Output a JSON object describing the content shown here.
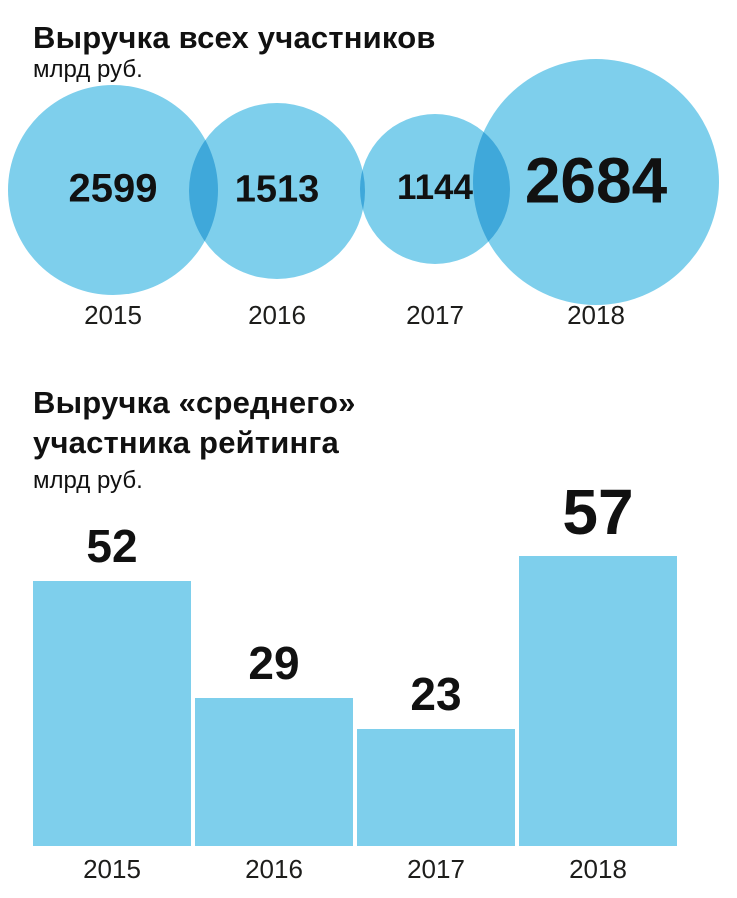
{
  "colors": {
    "fill": "#7ecfec",
    "text": "#111111",
    "year_label": "#1d1d1b",
    "background": "#ffffff"
  },
  "chart_data": [
    {
      "type": "bubble",
      "title": "Выручка всех участников",
      "subtitle": "млрд руб.",
      "categories": [
        "2015",
        "2016",
        "2017",
        "2018"
      ],
      "values": [
        2599,
        1513,
        1144,
        2684
      ],
      "unit": "млрд руб.",
      "notes": "bubble area roughly proportional to value; overlapping circles darken where they intersect"
    },
    {
      "type": "bar",
      "title_lines": [
        "Выручка «среднего»",
        "участника рейтинга"
      ],
      "title": "Выручка «среднего» участника рейтинга",
      "subtitle": "млрд руб.",
      "categories": [
        "2015",
        "2016",
        "2017",
        "2018"
      ],
      "values": [
        52,
        29,
        23,
        57
      ],
      "unit": "млрд руб.",
      "ylim": [
        0,
        60
      ],
      "grid": false,
      "legend": false
    }
  ]
}
